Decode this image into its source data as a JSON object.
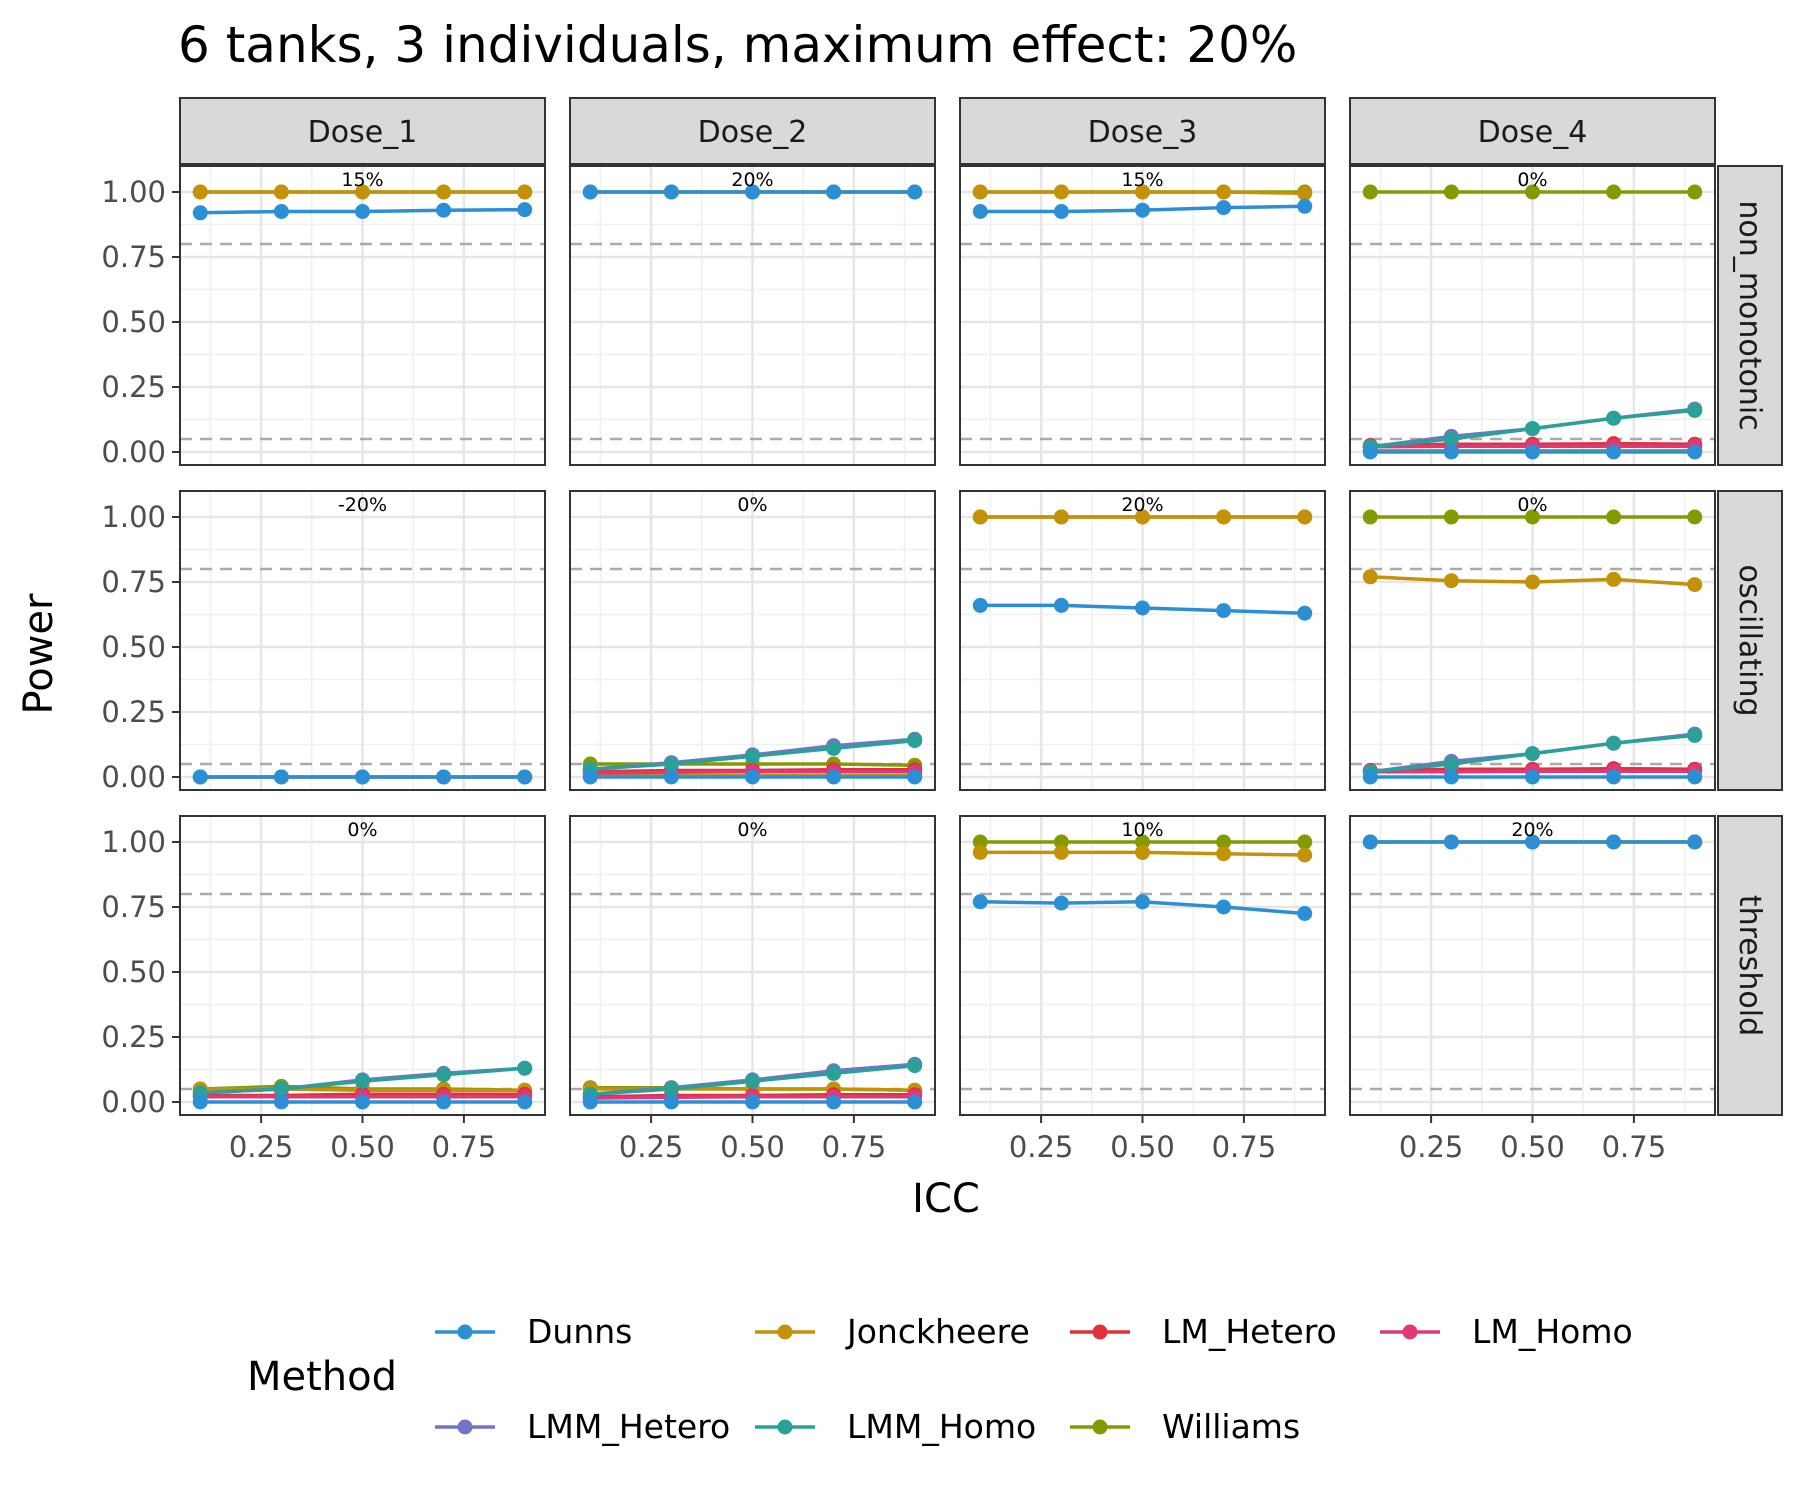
{
  "chart_data": {
    "type": "line",
    "title": "6 tanks, 3 individuals, maximum effect: 20%",
    "xlabel": "ICC",
    "ylabel": "Power",
    "x": [
      0.1,
      0.3,
      0.5,
      0.7,
      0.9
    ],
    "xlim": [
      0.05,
      0.95
    ],
    "ylim": [
      -0.05,
      1.1
    ],
    "x_ticks": [
      0.25,
      0.5,
      0.75
    ],
    "x_tick_labels": [
      "0.25",
      "0.50",
      "0.75"
    ],
    "y_ticks": [
      0,
      0.25,
      0.5,
      0.75,
      1
    ],
    "y_tick_labels": [
      "0.00",
      "0.25",
      "0.50",
      "0.75",
      "1.00"
    ],
    "reference_lines": [
      0.05,
      0.8
    ],
    "grid": true,
    "columns": [
      "Dose_1",
      "Dose_2",
      "Dose_3",
      "Dose_4"
    ],
    "rows": [
      "non_monotonic",
      "oscillating",
      "threshold"
    ],
    "legend": {
      "title": "Method",
      "position": "bottom",
      "entries": [
        "Dunns",
        "Jonckheere",
        "LM_Hetero",
        "LM_Homo",
        "LMM_Hetero",
        "LMM_Homo",
        "Williams"
      ]
    },
    "colors": {
      "Dunns": "#2b8fd6",
      "Jonckheere": "#c49208",
      "LM_Hetero": "#e0303a",
      "LM_Homo": "#e0397a",
      "LMM_Hetero": "#7373c9",
      "LMM_Homo": "#2aa198",
      "Williams": "#859900"
    },
    "panels": [
      {
        "row": "non_monotonic",
        "col": "Dose_1",
        "annotation": "15%",
        "series": [
          {
            "name": "Dunns",
            "values": [
              0.92,
              0.925,
              0.925,
              0.93,
              0.932
            ]
          },
          {
            "name": "Jonckheere",
            "values": [
              1,
              1,
              1,
              1,
              1
            ]
          },
          {
            "name": "Williams",
            "values": [
              1,
              1,
              1,
              1,
              1
            ]
          }
        ]
      },
      {
        "row": "non_monotonic",
        "col": "Dose_2",
        "annotation": "20%",
        "series": [
          {
            "name": "Dunns",
            "values": [
              1,
              1,
              1,
              1,
              1
            ]
          },
          {
            "name": "Jonckheere",
            "values": [
              1,
              1,
              1,
              1,
              1
            ]
          },
          {
            "name": "Williams",
            "values": [
              1,
              1,
              1,
              1,
              1
            ]
          }
        ]
      },
      {
        "row": "non_monotonic",
        "col": "Dose_3",
        "annotation": "15%",
        "series": [
          {
            "name": "Dunns",
            "values": [
              0.925,
              0.925,
              0.93,
              0.94,
              0.945
            ]
          },
          {
            "name": "Jonckheere",
            "values": [
              1,
              1,
              1,
              1,
              0.995
            ]
          },
          {
            "name": "Williams",
            "values": [
              1,
              1,
              1,
              1,
              1
            ]
          }
        ]
      },
      {
        "row": "non_monotonic",
        "col": "Dose_4",
        "annotation": "0%",
        "series": [
          {
            "name": "Dunns",
            "values": [
              0,
              0,
              0,
              0,
              0
            ]
          },
          {
            "name": "Jonckheere",
            "values": [
              0.005,
              0.005,
              0.005,
              0.005,
              0.005
            ]
          },
          {
            "name": "LM_Homo",
            "values": [
              0.02,
              0.022,
              0.022,
              0.022,
              0.022
            ]
          },
          {
            "name": "LM_Hetero",
            "values": [
              0.025,
              0.03,
              0.03,
              0.032,
              0.03
            ]
          },
          {
            "name": "LMM_Homo",
            "values": [
              0.02,
              0.05,
              0.09,
              0.13,
              0.16
            ]
          },
          {
            "name": "LMM_Hetero",
            "values": [
              0.02,
              0.06,
              0.09,
              0.13,
              0.165
            ]
          },
          {
            "name": "Williams",
            "values": [
              1,
              1,
              1,
              1,
              1
            ]
          }
        ]
      },
      {
        "row": "oscillating",
        "col": "Dose_1",
        "annotation": "-20%",
        "series": [
          {
            "name": "Dunns",
            "values": [
              0,
              0,
              0,
              0,
              0
            ]
          },
          {
            "name": "Jonckheere",
            "values": [
              0,
              0,
              0,
              0,
              0
            ]
          },
          {
            "name": "Williams",
            "values": [
              0,
              0,
              0,
              0,
              0
            ]
          }
        ]
      },
      {
        "row": "oscillating",
        "col": "Dose_2",
        "annotation": "0%",
        "series": [
          {
            "name": "Dunns",
            "values": [
              0,
              0,
              0,
              0,
              0
            ]
          },
          {
            "name": "Jonckheere",
            "values": [
              0.005,
              0.005,
              0.005,
              0.005,
              0.005
            ]
          },
          {
            "name": "LM_Homo",
            "values": [
              0.015,
              0.018,
              0.02,
              0.02,
              0.02
            ]
          },
          {
            "name": "LM_Hetero",
            "values": [
              0.02,
              0.025,
              0.025,
              0.028,
              0.028
            ]
          },
          {
            "name": "LMM_Homo",
            "values": [
              0.03,
              0.05,
              0.08,
              0.11,
              0.14
            ]
          },
          {
            "name": "LMM_Hetero",
            "values": [
              0.03,
              0.055,
              0.085,
              0.12,
              0.145
            ]
          },
          {
            "name": "Williams",
            "values": [
              0.05,
              0.05,
              0.05,
              0.05,
              0.045
            ]
          }
        ]
      },
      {
        "row": "oscillating",
        "col": "Dose_3",
        "annotation": "20%",
        "series": [
          {
            "name": "Dunns",
            "values": [
              0.66,
              0.66,
              0.65,
              0.64,
              0.63
            ]
          },
          {
            "name": "Jonckheere",
            "values": [
              1,
              1,
              1,
              1,
              1
            ]
          },
          {
            "name": "Williams",
            "values": [
              1,
              1,
              1,
              1,
              1
            ]
          }
        ]
      },
      {
        "row": "oscillating",
        "col": "Dose_4",
        "annotation": "0%",
        "series": [
          {
            "name": "Dunns",
            "values": [
              0,
              0,
              0,
              0,
              0
            ]
          },
          {
            "name": "Jonckheere",
            "values": [
              0.77,
              0.755,
              0.75,
              0.76,
              0.74
            ]
          },
          {
            "name": "LM_Homo",
            "values": [
              0.02,
              0.02,
              0.022,
              0.022,
              0.022
            ]
          },
          {
            "name": "LM_Hetero",
            "values": [
              0.025,
              0.03,
              0.03,
              0.032,
              0.03
            ]
          },
          {
            "name": "LMM_Homo",
            "values": [
              0.02,
              0.05,
              0.09,
              0.13,
              0.16
            ]
          },
          {
            "name": "LMM_Hetero",
            "values": [
              0.02,
              0.06,
              0.09,
              0.13,
              0.165
            ]
          },
          {
            "name": "Williams",
            "values": [
              1,
              1,
              1,
              1,
              1
            ]
          }
        ]
      },
      {
        "row": "threshold",
        "col": "Dose_1",
        "annotation": "0%",
        "series": [
          {
            "name": "Dunns",
            "values": [
              0,
              0,
              0,
              0,
              0
            ]
          },
          {
            "name": "Jonckheere",
            "values": [
              0.05,
              0.05,
              0.045,
              0.045,
              0.045
            ]
          },
          {
            "name": "LM_Homo",
            "values": [
              0.02,
              0.02,
              0.02,
              0.02,
              0.02
            ]
          },
          {
            "name": "LM_Hetero",
            "values": [
              0.025,
              0.025,
              0.03,
              0.03,
              0.03
            ]
          },
          {
            "name": "LMM_Homo",
            "values": [
              0.035,
              0.05,
              0.08,
              0.105,
              0.13
            ]
          },
          {
            "name": "LMM_Hetero",
            "values": [
              0.035,
              0.05,
              0.085,
              0.11,
              0.13
            ]
          },
          {
            "name": "Williams",
            "values": [
              0.05,
              0.06,
              0.05,
              0.05,
              0.045
            ]
          }
        ]
      },
      {
        "row": "threshold",
        "col": "Dose_2",
        "annotation": "0%",
        "series": [
          {
            "name": "Dunns",
            "values": [
              0,
              0,
              0,
              0,
              0
            ]
          },
          {
            "name": "Jonckheere",
            "values": [
              0.05,
              0.05,
              0.05,
              0.05,
              0.045
            ]
          },
          {
            "name": "LM_Homo",
            "values": [
              0.015,
              0.018,
              0.02,
              0.02,
              0.02
            ]
          },
          {
            "name": "LM_Hetero",
            "values": [
              0.02,
              0.025,
              0.025,
              0.028,
              0.028
            ]
          },
          {
            "name": "LMM_Homo",
            "values": [
              0.03,
              0.05,
              0.08,
              0.11,
              0.14
            ]
          },
          {
            "name": "LMM_Hetero",
            "values": [
              0.03,
              0.055,
              0.085,
              0.12,
              0.145
            ]
          },
          {
            "name": "Williams",
            "values": [
              0.055,
              0.055,
              0.05,
              0.05,
              0.045
            ]
          }
        ]
      },
      {
        "row": "threshold",
        "col": "Dose_3",
        "annotation": "10%",
        "series": [
          {
            "name": "Dunns",
            "values": [
              0.77,
              0.765,
              0.77,
              0.75,
              0.725
            ]
          },
          {
            "name": "Jonckheere",
            "values": [
              0.96,
              0.96,
              0.96,
              0.955,
              0.95
            ]
          },
          {
            "name": "Williams",
            "values": [
              1,
              1,
              1,
              1,
              1
            ]
          }
        ]
      },
      {
        "row": "threshold",
        "col": "Dose_4",
        "annotation": "20%",
        "series": [
          {
            "name": "Dunns",
            "values": [
              1,
              1,
              1,
              1,
              1
            ]
          },
          {
            "name": "Jonckheere",
            "values": [
              1,
              1,
              1,
              1,
              1
            ]
          },
          {
            "name": "Williams",
            "values": [
              1,
              1,
              1,
              1,
              1
            ]
          }
        ]
      }
    ]
  }
}
